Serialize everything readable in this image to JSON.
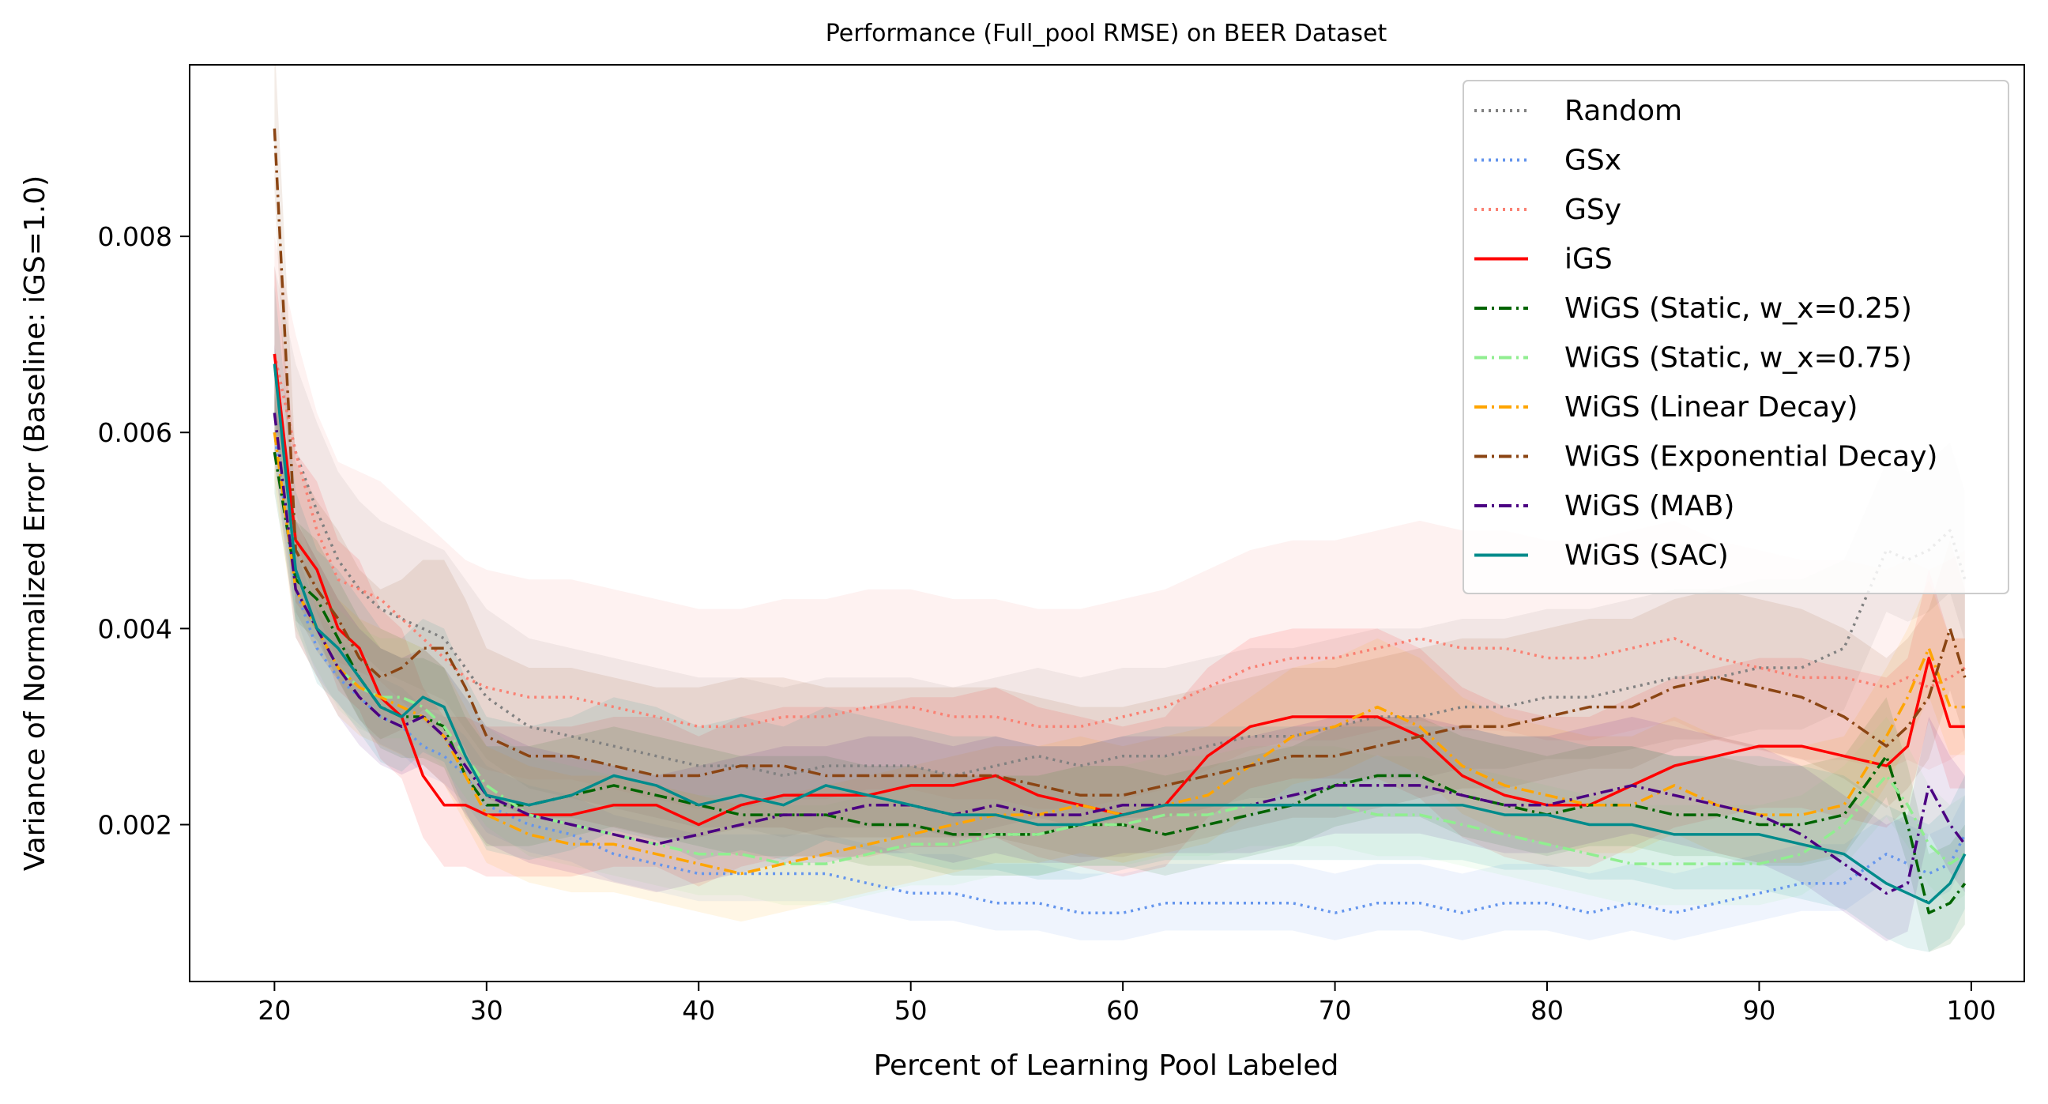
{
  "chart_data": {
    "type": "line",
    "title": "Performance (Full_pool RMSE) on BEER Dataset",
    "xlabel": "Percent of Learning Pool Labeled",
    "ylabel": "Variance of Normalized Error (Baseline: iGS=1.0)",
    "xlim": [
      16,
      102.5
    ],
    "ylim": [
      0.0004,
      0.00975
    ],
    "xticks": [
      20,
      30,
      40,
      50,
      60,
      70,
      80,
      90,
      100
    ],
    "xtick_labels": [
      "20",
      "30",
      "40",
      "50",
      "60",
      "70",
      "80",
      "90",
      "100"
    ],
    "yticks": [
      0.002,
      0.004,
      0.006,
      0.008
    ],
    "ytick_labels": [
      "0.002",
      "0.004",
      "0.006",
      "0.008"
    ],
    "grid": false,
    "legend_position": "top-right",
    "shaded_bands": true,
    "x": [
      20,
      21,
      22,
      23,
      24,
      25,
      26,
      27,
      28,
      29,
      30,
      32,
      34,
      36,
      38,
      40,
      42,
      44,
      46,
      48,
      50,
      52,
      54,
      56,
      58,
      60,
      62,
      64,
      66,
      68,
      70,
      72,
      74,
      76,
      78,
      80,
      82,
      84,
      86,
      88,
      90,
      92,
      94,
      96,
      97,
      98,
      99,
      99.7
    ],
    "series": [
      {
        "name": "Random",
        "color": "#808080",
        "dash": "dotted",
        "band": 0.0009,
        "values": [
          0.0068,
          0.0058,
          0.0052,
          0.0047,
          0.0044,
          0.0042,
          0.0041,
          0.004,
          0.0039,
          0.0036,
          0.0033,
          0.003,
          0.0029,
          0.0028,
          0.0027,
          0.0026,
          0.0026,
          0.0025,
          0.0026,
          0.0026,
          0.0026,
          0.0025,
          0.0026,
          0.0027,
          0.0026,
          0.0027,
          0.0027,
          0.0028,
          0.0029,
          0.0029,
          0.003,
          0.0031,
          0.0031,
          0.0032,
          0.0032,
          0.0033,
          0.0033,
          0.0034,
          0.0035,
          0.0035,
          0.0036,
          0.0036,
          0.0038,
          0.0048,
          0.0047,
          0.0048,
          0.005,
          0.0045
        ]
      },
      {
        "name": "GSx",
        "color": "#6495ed",
        "dash": "dotted",
        "band": 0.0004,
        "values": [
          0.006,
          0.0044,
          0.0038,
          0.0035,
          0.0033,
          0.0031,
          0.003,
          0.0028,
          0.0027,
          0.0025,
          0.0022,
          0.002,
          0.0019,
          0.0017,
          0.0016,
          0.0015,
          0.0015,
          0.0015,
          0.0015,
          0.0014,
          0.0013,
          0.0013,
          0.0012,
          0.0012,
          0.0011,
          0.0011,
          0.0012,
          0.0012,
          0.0012,
          0.0012,
          0.0011,
          0.0012,
          0.0012,
          0.0011,
          0.0012,
          0.0012,
          0.0011,
          0.0012,
          0.0011,
          0.0012,
          0.0013,
          0.0014,
          0.0014,
          0.0017,
          0.0016,
          0.0015,
          0.0016,
          0.0019
        ]
      },
      {
        "name": "GSy",
        "color": "#fa8072",
        "dash": "dotted",
        "band": 0.0012,
        "values": [
          0.0068,
          0.0058,
          0.005,
          0.0045,
          0.0044,
          0.0043,
          0.0041,
          0.0039,
          0.0037,
          0.0035,
          0.0034,
          0.0033,
          0.0033,
          0.0032,
          0.0031,
          0.003,
          0.003,
          0.0031,
          0.0031,
          0.0032,
          0.0032,
          0.0031,
          0.0031,
          0.003,
          0.003,
          0.0031,
          0.0032,
          0.0034,
          0.0036,
          0.0037,
          0.0037,
          0.0038,
          0.0039,
          0.0038,
          0.0038,
          0.0037,
          0.0037,
          0.0038,
          0.0039,
          0.0037,
          0.0036,
          0.0035,
          0.0035,
          0.0034,
          0.0035,
          0.0034,
          0.0035,
          0.0036
        ]
      },
      {
        "name": "iGS",
        "color": "#ff0000",
        "dash": "solid",
        "band": 0.0009,
        "values": [
          0.0068,
          0.0049,
          0.0046,
          0.004,
          0.0038,
          0.0033,
          0.0031,
          0.0025,
          0.0022,
          0.0022,
          0.0021,
          0.0021,
          0.0021,
          0.0022,
          0.0022,
          0.002,
          0.0022,
          0.0023,
          0.0023,
          0.0023,
          0.0024,
          0.0024,
          0.0025,
          0.0023,
          0.0022,
          0.0021,
          0.0022,
          0.0027,
          0.003,
          0.0031,
          0.0031,
          0.0031,
          0.0029,
          0.0025,
          0.0023,
          0.0022,
          0.0022,
          0.0024,
          0.0026,
          0.0027,
          0.0028,
          0.0028,
          0.0027,
          0.0026,
          0.0028,
          0.0037,
          0.003,
          0.003
        ]
      },
      {
        "name": "WiGS (Static, w_x=0.25)",
        "color": "#006400",
        "dash": "dashdot",
        "band": 0.0006,
        "values": [
          0.0058,
          0.0045,
          0.0043,
          0.0039,
          0.0035,
          0.0032,
          0.0031,
          0.0031,
          0.003,
          0.0025,
          0.0022,
          0.0022,
          0.0023,
          0.0024,
          0.0023,
          0.0022,
          0.0021,
          0.0021,
          0.0021,
          0.002,
          0.002,
          0.0019,
          0.0019,
          0.0019,
          0.002,
          0.002,
          0.0019,
          0.002,
          0.0021,
          0.0022,
          0.0024,
          0.0025,
          0.0025,
          0.0023,
          0.0022,
          0.0021,
          0.0022,
          0.0022,
          0.0021,
          0.0021,
          0.002,
          0.002,
          0.0021,
          0.0027,
          0.002,
          0.0011,
          0.0012,
          0.0014
        ]
      },
      {
        "name": "WiGS (Static, w_x=0.75)",
        "color": "#90ee90",
        "dash": "dashdot",
        "band": 0.0006,
        "values": [
          0.0062,
          0.0044,
          0.004,
          0.0036,
          0.0034,
          0.0033,
          0.0033,
          0.0032,
          0.003,
          0.0027,
          0.0024,
          0.0021,
          0.002,
          0.0019,
          0.0018,
          0.0017,
          0.0017,
          0.0016,
          0.0016,
          0.0017,
          0.0018,
          0.0018,
          0.0019,
          0.0019,
          0.002,
          0.002,
          0.0021,
          0.0021,
          0.0022,
          0.0022,
          0.0022,
          0.0021,
          0.0021,
          0.002,
          0.0019,
          0.0018,
          0.0017,
          0.0016,
          0.0016,
          0.0016,
          0.0016,
          0.0017,
          0.002,
          0.0025,
          0.0022,
          0.0018,
          0.0016,
          0.0017
        ]
      },
      {
        "name": "WiGS (Linear Decay)",
        "color": "#ffa500",
        "dash": "dashdot",
        "band": 0.0007,
        "values": [
          0.006,
          0.0044,
          0.004,
          0.0036,
          0.0034,
          0.0033,
          0.0032,
          0.0031,
          0.0029,
          0.0025,
          0.0021,
          0.0019,
          0.0018,
          0.0018,
          0.0017,
          0.0016,
          0.0015,
          0.0016,
          0.0017,
          0.0018,
          0.0019,
          0.002,
          0.0021,
          0.0021,
          0.0022,
          0.0021,
          0.0022,
          0.0023,
          0.0026,
          0.0029,
          0.003,
          0.0032,
          0.003,
          0.0026,
          0.0024,
          0.0023,
          0.0022,
          0.0022,
          0.0024,
          0.0022,
          0.0021,
          0.0021,
          0.0022,
          0.0029,
          0.0033,
          0.0038,
          0.0032,
          0.0032
        ]
      },
      {
        "name": "WiGS (Exponential Decay)",
        "color": "#8b4513",
        "dash": "dashdot",
        "band": 0.0009,
        "values": [
          0.0091,
          0.0048,
          0.0044,
          0.0041,
          0.0037,
          0.0035,
          0.0036,
          0.0038,
          0.0038,
          0.0034,
          0.0029,
          0.0027,
          0.0027,
          0.0026,
          0.0025,
          0.0025,
          0.0026,
          0.0026,
          0.0025,
          0.0025,
          0.0025,
          0.0025,
          0.0025,
          0.0024,
          0.0023,
          0.0023,
          0.0024,
          0.0025,
          0.0026,
          0.0027,
          0.0027,
          0.0028,
          0.0029,
          0.003,
          0.003,
          0.0031,
          0.0032,
          0.0032,
          0.0034,
          0.0035,
          0.0034,
          0.0033,
          0.0031,
          0.0028,
          0.003,
          0.0033,
          0.004,
          0.0035
        ]
      },
      {
        "name": "WiGS (MAB)",
        "color": "#4b0082",
        "dash": "dashdot",
        "band": 0.0007,
        "values": [
          0.0062,
          0.0044,
          0.004,
          0.0036,
          0.0033,
          0.0031,
          0.003,
          0.0031,
          0.0029,
          0.0026,
          0.0023,
          0.0021,
          0.002,
          0.0019,
          0.0018,
          0.0019,
          0.002,
          0.0021,
          0.0021,
          0.0022,
          0.0022,
          0.0021,
          0.0022,
          0.0021,
          0.0021,
          0.0022,
          0.0022,
          0.0022,
          0.0022,
          0.0023,
          0.0024,
          0.0024,
          0.0024,
          0.0023,
          0.0022,
          0.0022,
          0.0023,
          0.0024,
          0.0023,
          0.0022,
          0.0021,
          0.0019,
          0.0016,
          0.0013,
          0.0014,
          0.0024,
          0.002,
          0.0018
        ]
      },
      {
        "name": "WiGS (SAC)",
        "color": "#008b8b",
        "dash": "solid",
        "band": 0.0008,
        "values": [
          0.0067,
          0.0046,
          0.004,
          0.0038,
          0.0035,
          0.0032,
          0.0031,
          0.0033,
          0.0032,
          0.0027,
          0.0023,
          0.0022,
          0.0023,
          0.0025,
          0.0024,
          0.0022,
          0.0023,
          0.0022,
          0.0024,
          0.0023,
          0.0022,
          0.0021,
          0.0021,
          0.002,
          0.002,
          0.0021,
          0.0022,
          0.0022,
          0.0022,
          0.0022,
          0.0022,
          0.0022,
          0.0022,
          0.0022,
          0.0021,
          0.0021,
          0.002,
          0.002,
          0.0019,
          0.0019,
          0.0019,
          0.0018,
          0.0017,
          0.0014,
          0.0013,
          0.0012,
          0.0014,
          0.0017
        ]
      }
    ]
  }
}
